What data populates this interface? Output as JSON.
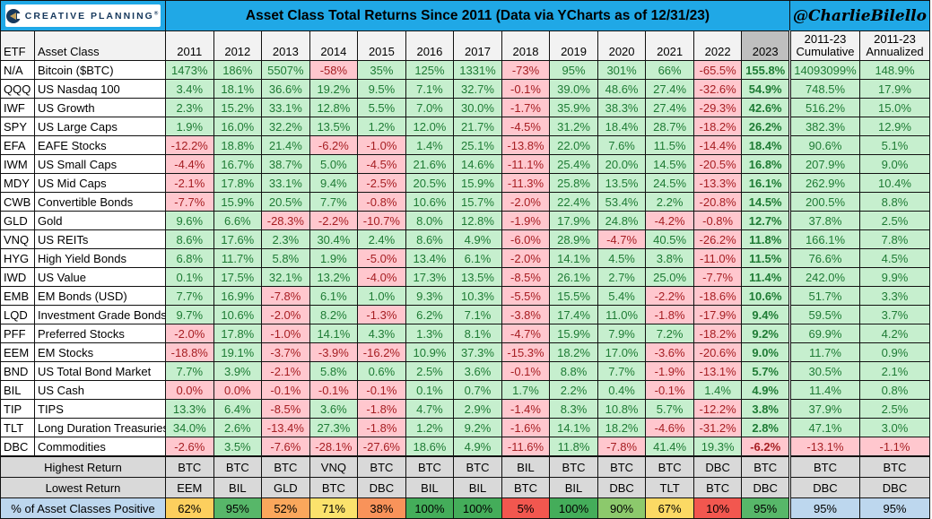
{
  "brand": {
    "name": "CREATIVE PLANNING",
    "tm": "®",
    "navy": "#17395d",
    "gold": "#c2a05c"
  },
  "banner": {
    "title": "Asset Class Total Returns Since 2011 (Data via YCharts as of 12/31/23)",
    "handle": "@CharlieBilello",
    "background": "#20a8e6"
  },
  "palette": {
    "positive_bg": "#c6efce",
    "positive_text": "#1e7b34",
    "negative_bg": "#ffc7ce",
    "negative_text": "#a61e22",
    "header_bg": "#f2f2f2",
    "header_2023_bg": "#bfbfbf",
    "summary_bg": "#d9d9d9",
    "pct_label_bg": "#bdd7ee"
  },
  "chart_data": {
    "type": "table",
    "title": "Asset Class Total Returns Since 2011 (Data via YCharts as of 12/31/23)",
    "etf_header": "ETF",
    "asset_header": "Asset Class",
    "years": [
      "2011",
      "2012",
      "2013",
      "2014",
      "2015",
      "2016",
      "2017",
      "2018",
      "2019",
      "2020",
      "2021",
      "2022",
      "2023"
    ],
    "cum_header": {
      "line1": "2011-23",
      "line2": "Cumulative"
    },
    "ann_header": {
      "line1": "2011-23",
      "line2": "Annualized"
    },
    "rows": [
      {
        "etf": "N/A",
        "asset_class": "Bitcoin ($BTC)",
        "values": [
          "1473%",
          "186%",
          "5507%",
          "-58%",
          "35%",
          "125%",
          "1331%",
          "-73%",
          "95%",
          "301%",
          "66%",
          "-65.5%",
          "155.8%"
        ],
        "cumulative": "14093099%",
        "annualized": "148.9%"
      },
      {
        "etf": "QQQ",
        "asset_class": "US Nasdaq 100",
        "values": [
          "3.4%",
          "18.1%",
          "36.6%",
          "19.2%",
          "9.5%",
          "7.1%",
          "32.7%",
          "-0.1%",
          "39.0%",
          "48.6%",
          "27.4%",
          "-32.6%",
          "54.9%"
        ],
        "cumulative": "748.5%",
        "annualized": "17.9%"
      },
      {
        "etf": "IWF",
        "asset_class": "US Growth",
        "values": [
          "2.3%",
          "15.2%",
          "33.1%",
          "12.8%",
          "5.5%",
          "7.0%",
          "30.0%",
          "-1.7%",
          "35.9%",
          "38.3%",
          "27.4%",
          "-29.3%",
          "42.6%"
        ],
        "cumulative": "516.2%",
        "annualized": "15.0%"
      },
      {
        "etf": "SPY",
        "asset_class": "US Large Caps",
        "values": [
          "1.9%",
          "16.0%",
          "32.2%",
          "13.5%",
          "1.2%",
          "12.0%",
          "21.7%",
          "-4.5%",
          "31.2%",
          "18.4%",
          "28.7%",
          "-18.2%",
          "26.2%"
        ],
        "cumulative": "382.3%",
        "annualized": "12.9%"
      },
      {
        "etf": "EFA",
        "asset_class": "EAFE Stocks",
        "values": [
          "-12.2%",
          "18.8%",
          "21.4%",
          "-6.2%",
          "-1.0%",
          "1.4%",
          "25.1%",
          "-13.8%",
          "22.0%",
          "7.6%",
          "11.5%",
          "-14.4%",
          "18.4%"
        ],
        "cumulative": "90.6%",
        "annualized": "5.1%"
      },
      {
        "etf": "IWM",
        "asset_class": "US Small Caps",
        "values": [
          "-4.4%",
          "16.7%",
          "38.7%",
          "5.0%",
          "-4.5%",
          "21.6%",
          "14.6%",
          "-11.1%",
          "25.4%",
          "20.0%",
          "14.5%",
          "-20.5%",
          "16.8%"
        ],
        "cumulative": "207.9%",
        "annualized": "9.0%"
      },
      {
        "etf": "MDY",
        "asset_class": "US Mid Caps",
        "values": [
          "-2.1%",
          "17.8%",
          "33.1%",
          "9.4%",
          "-2.5%",
          "20.5%",
          "15.9%",
          "-11.3%",
          "25.8%",
          "13.5%",
          "24.5%",
          "-13.3%",
          "16.1%"
        ],
        "cumulative": "262.9%",
        "annualized": "10.4%"
      },
      {
        "etf": "CWB",
        "asset_class": "Convertible Bonds",
        "values": [
          "-7.7%",
          "15.9%",
          "20.5%",
          "7.7%",
          "-0.8%",
          "10.6%",
          "15.7%",
          "-2.0%",
          "22.4%",
          "53.4%",
          "2.2%",
          "-20.8%",
          "14.5%"
        ],
        "cumulative": "200.5%",
        "annualized": "8.8%"
      },
      {
        "etf": "GLD",
        "asset_class": "Gold",
        "values": [
          "9.6%",
          "6.6%",
          "-28.3%",
          "-2.2%",
          "-10.7%",
          "8.0%",
          "12.8%",
          "-1.9%",
          "17.9%",
          "24.8%",
          "-4.2%",
          "-0.8%",
          "12.7%"
        ],
        "cumulative": "37.8%",
        "annualized": "2.5%"
      },
      {
        "etf": "VNQ",
        "asset_class": "US REITs",
        "values": [
          "8.6%",
          "17.6%",
          "2.3%",
          "30.4%",
          "2.4%",
          "8.6%",
          "4.9%",
          "-6.0%",
          "28.9%",
          "-4.7%",
          "40.5%",
          "-26.2%",
          "11.8%"
        ],
        "cumulative": "166.1%",
        "annualized": "7.8%"
      },
      {
        "etf": "HYG",
        "asset_class": "High Yield Bonds",
        "values": [
          "6.8%",
          "11.7%",
          "5.8%",
          "1.9%",
          "-5.0%",
          "13.4%",
          "6.1%",
          "-2.0%",
          "14.1%",
          "4.5%",
          "3.8%",
          "-11.0%",
          "11.5%"
        ],
        "cumulative": "76.6%",
        "annualized": "4.5%"
      },
      {
        "etf": "IWD",
        "asset_class": "US Value",
        "values": [
          "0.1%",
          "17.5%",
          "32.1%",
          "13.2%",
          "-4.0%",
          "17.3%",
          "13.5%",
          "-8.5%",
          "26.1%",
          "2.7%",
          "25.0%",
          "-7.7%",
          "11.4%"
        ],
        "cumulative": "242.0%",
        "annualized": "9.9%"
      },
      {
        "etf": "EMB",
        "asset_class": "EM Bonds (USD)",
        "values": [
          "7.7%",
          "16.9%",
          "-7.8%",
          "6.1%",
          "1.0%",
          "9.3%",
          "10.3%",
          "-5.5%",
          "15.5%",
          "5.4%",
          "-2.2%",
          "-18.6%",
          "10.6%"
        ],
        "cumulative": "51.7%",
        "annualized": "3.3%"
      },
      {
        "etf": "LQD",
        "asset_class": "Investment Grade Bonds",
        "values": [
          "9.7%",
          "10.6%",
          "-2.0%",
          "8.2%",
          "-1.3%",
          "6.2%",
          "7.1%",
          "-3.8%",
          "17.4%",
          "11.0%",
          "-1.8%",
          "-17.9%",
          "9.4%"
        ],
        "cumulative": "59.5%",
        "annualized": "3.7%"
      },
      {
        "etf": "PFF",
        "asset_class": "Preferred Stocks",
        "values": [
          "-2.0%",
          "17.8%",
          "-1.0%",
          "14.1%",
          "4.3%",
          "1.3%",
          "8.1%",
          "-4.7%",
          "15.9%",
          "7.9%",
          "7.2%",
          "-18.2%",
          "9.2%"
        ],
        "cumulative": "69.9%",
        "annualized": "4.2%"
      },
      {
        "etf": "EEM",
        "asset_class": "EM Stocks",
        "values": [
          "-18.8%",
          "19.1%",
          "-3.7%",
          "-3.9%",
          "-16.2%",
          "10.9%",
          "37.3%",
          "-15.3%",
          "18.2%",
          "17.0%",
          "-3.6%",
          "-20.6%",
          "9.0%"
        ],
        "cumulative": "11.7%",
        "annualized": "0.9%"
      },
      {
        "etf": "BND",
        "asset_class": "US Total Bond Market",
        "values": [
          "7.7%",
          "3.9%",
          "-2.1%",
          "5.8%",
          "0.6%",
          "2.5%",
          "3.6%",
          "-0.1%",
          "8.8%",
          "7.7%",
          "-1.9%",
          "-13.1%",
          "5.7%"
        ],
        "cumulative": "30.5%",
        "annualized": "2.1%"
      },
      {
        "etf": "BIL",
        "asset_class": "US Cash",
        "values": [
          "0.0%",
          "0.0%",
          "-0.1%",
          "-0.1%",
          "-0.1%",
          "0.1%",
          "0.7%",
          "1.7%",
          "2.2%",
          "0.4%",
          "-0.1%",
          "1.4%",
          "4.9%"
        ],
        "cumulative": "11.4%",
        "annualized": "0.8%"
      },
      {
        "etf": "TIP",
        "asset_class": "TIPS",
        "values": [
          "13.3%",
          "6.4%",
          "-8.5%",
          "3.6%",
          "-1.8%",
          "4.7%",
          "2.9%",
          "-1.4%",
          "8.3%",
          "10.8%",
          "5.7%",
          "-12.2%",
          "3.8%"
        ],
        "cumulative": "37.9%",
        "annualized": "2.5%"
      },
      {
        "etf": "TLT",
        "asset_class": "Long Duration Treasuries",
        "values": [
          "34.0%",
          "2.6%",
          "-13.4%",
          "27.3%",
          "-1.8%",
          "1.2%",
          "9.2%",
          "-1.6%",
          "14.1%",
          "18.2%",
          "-4.6%",
          "-31.2%",
          "2.8%"
        ],
        "cumulative": "47.1%",
        "annualized": "3.0%"
      },
      {
        "etf": "DBC",
        "asset_class": "Commodities",
        "values": [
          "-2.6%",
          "3.5%",
          "-7.6%",
          "-28.1%",
          "-27.6%",
          "18.6%",
          "4.9%",
          "-11.6%",
          "11.8%",
          "-7.8%",
          "41.4%",
          "19.3%",
          "-6.2%"
        ],
        "cumulative": "-13.1%",
        "annualized": "-1.1%"
      }
    ],
    "summary": {
      "highest": {
        "label": "Highest Return",
        "values": [
          "BTC",
          "BTC",
          "BTC",
          "VNQ",
          "BTC",
          "BTC",
          "BTC",
          "BIL",
          "BTC",
          "BTC",
          "BTC",
          "DBC",
          "BTC"
        ],
        "cumulative": "BTC",
        "annualized": "BTC"
      },
      "lowest": {
        "label": "Lowest Return",
        "values": [
          "EEM",
          "BIL",
          "GLD",
          "BTC",
          "DBC",
          "BIL",
          "BIL",
          "BTC",
          "BIL",
          "DBC",
          "TLT",
          "BTC",
          "DBC"
        ],
        "cumulative": "DBC",
        "annualized": "DBC"
      },
      "positive": {
        "label": "% of Asset Classes Positive",
        "values": [
          {
            "t": "62%",
            "c": "#fccf5e"
          },
          {
            "t": "95%",
            "c": "#57b769"
          },
          {
            "t": "52%",
            "c": "#faa75c"
          },
          {
            "t": "71%",
            "c": "#fbe26c"
          },
          {
            "t": "38%",
            "c": "#f9935a"
          },
          {
            "t": "100%",
            "c": "#44ad5a"
          },
          {
            "t": "100%",
            "c": "#44ad5a"
          },
          {
            "t": "5%",
            "c": "#f2574f"
          },
          {
            "t": "100%",
            "c": "#44ad5a"
          },
          {
            "t": "90%",
            "c": "#8cc96c"
          },
          {
            "t": "67%",
            "c": "#fbd964"
          },
          {
            "t": "10%",
            "c": "#f2574f"
          },
          {
            "t": "95%",
            "c": "#57b769"
          }
        ],
        "cumulative": {
          "t": "95%",
          "c": "#bdd7ee"
        },
        "annualized": {
          "t": "95%",
          "c": "#bdd7ee"
        }
      }
    }
  }
}
